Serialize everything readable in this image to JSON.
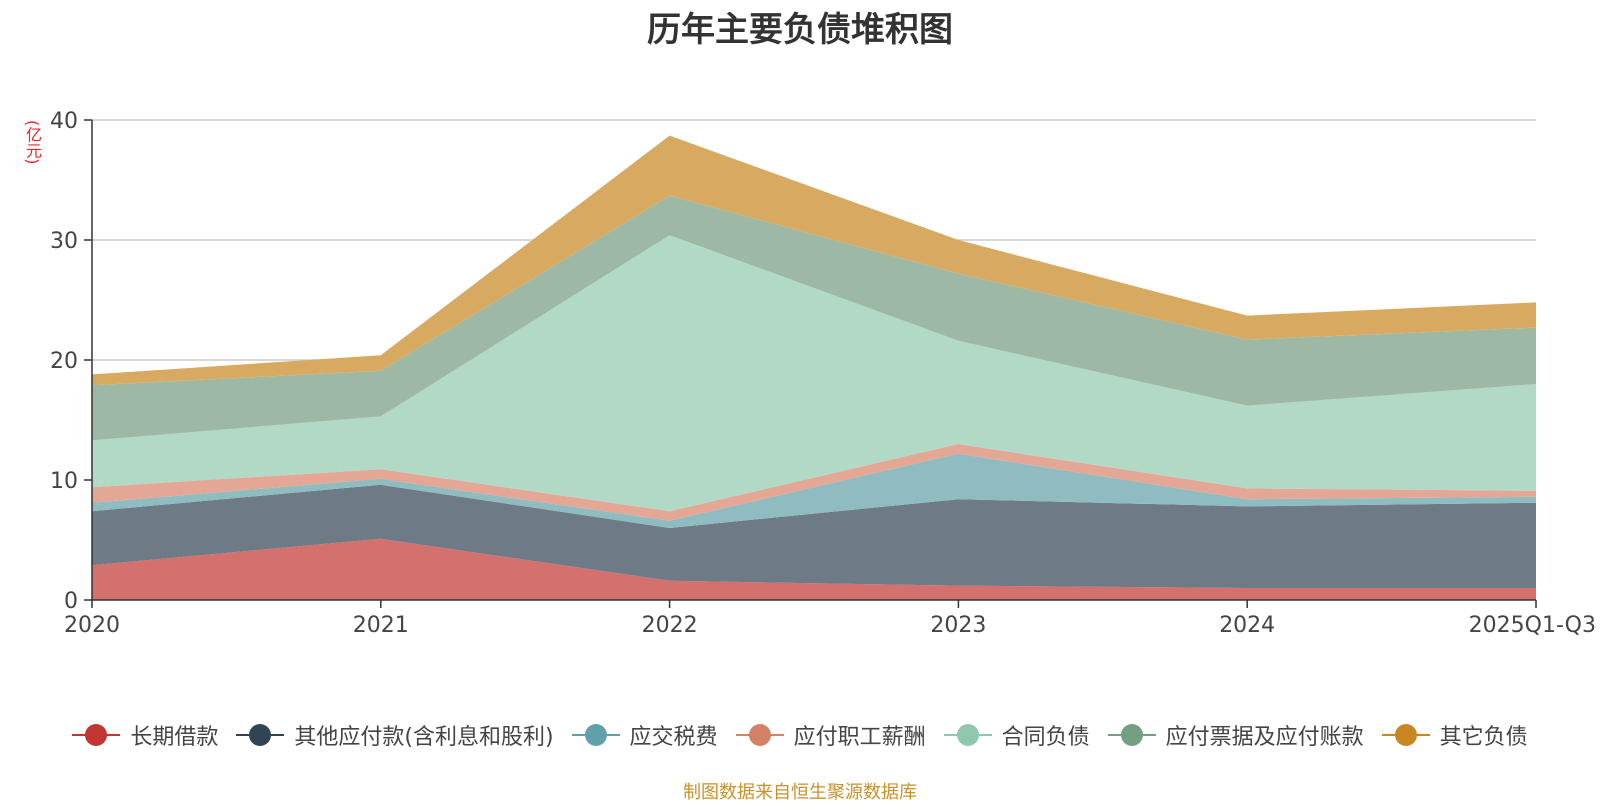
{
  "chart_data": {
    "type": "area",
    "stacked": true,
    "title": "历年主要负债堆积图",
    "ylabel": "亿元",
    "unit_label": "(亿元)",
    "categories": [
      "2020",
      "2021",
      "2022",
      "2023",
      "2024",
      "2025Q1-Q3"
    ],
    "ylim": [
      0,
      40
    ],
    "yticks": [
      0,
      10,
      20,
      30,
      40
    ],
    "grid": true,
    "legend_position": "bottom",
    "series": [
      {
        "name": "长期借款",
        "color": "#c23531",
        "fill": "#d4706d",
        "values": [
          2.9,
          5.1,
          1.6,
          1.2,
          1.0,
          1.0
        ]
      },
      {
        "name": "其他应付款(含利息和股利)",
        "color": "#2f4554",
        "fill": "#6e7a85",
        "values": [
          4.5,
          4.5,
          4.4,
          7.2,
          6.8,
          7.1
        ]
      },
      {
        "name": "应交税费",
        "color": "#61a0a8",
        "fill": "#8fbcc1",
        "values": [
          0.7,
          0.5,
          0.6,
          3.8,
          0.6,
          0.5
        ]
      },
      {
        "name": "应付职工薪酬",
        "color": "#d48265",
        "fill": "#e4a796",
        "values": [
          1.3,
          0.8,
          0.8,
          0.8,
          0.9,
          0.5
        ]
      },
      {
        "name": "合同负债",
        "color": "#91c7ae",
        "fill": "#b2d8c6",
        "values": [
          3.9,
          4.4,
          23.0,
          8.6,
          6.9,
          8.9
        ]
      },
      {
        "name": "应付票据及应付账款",
        "color": "#749f83",
        "fill": "#9db9a5",
        "values": [
          4.6,
          3.8,
          3.3,
          5.6,
          5.5,
          4.7
        ]
      },
      {
        "name": "其它负债",
        "color": "#ca8622",
        "fill": "#d8a961",
        "values": [
          0.9,
          1.3,
          5.0,
          2.8,
          2.0,
          2.1
        ]
      }
    ]
  },
  "footer": {
    "source": "制图数据来自恒生聚源数据库"
  }
}
